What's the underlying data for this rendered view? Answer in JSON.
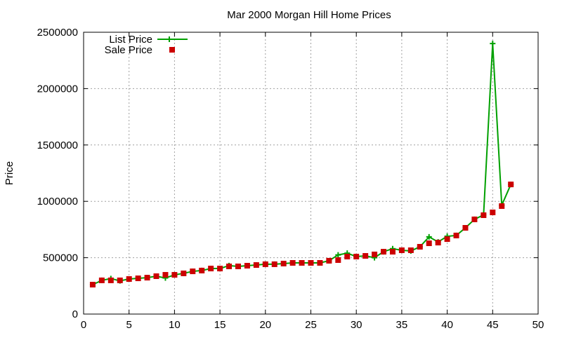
{
  "chart_data": {
    "type": "line",
    "title": "Mar 2000 Morgan Hill Home Prices",
    "xlabel": "",
    "ylabel": "Price",
    "xlim": [
      0,
      50
    ],
    "ylim": [
      0,
      2500000
    ],
    "xticks": [
      0,
      5,
      10,
      15,
      20,
      25,
      30,
      35,
      40,
      45,
      50
    ],
    "yticks": [
      0,
      500000,
      1000000,
      1500000,
      2000000,
      2500000
    ],
    "xtick_labels": [
      "0",
      "5",
      "10",
      "15",
      "20",
      "25",
      "30",
      "35",
      "40",
      "45",
      "50"
    ],
    "ytick_labels": [
      "0",
      "500000",
      "1000000",
      "1500000",
      "2000000",
      "2500000"
    ],
    "grid": true,
    "legend_position": "top-left",
    "x": [
      1,
      2,
      3,
      4,
      5,
      6,
      7,
      8,
      9,
      10,
      11,
      12,
      13,
      14,
      15,
      16,
      17,
      18,
      19,
      20,
      21,
      22,
      23,
      24,
      25,
      26,
      27,
      28,
      29,
      30,
      31,
      32,
      33,
      34,
      35,
      36,
      37,
      38,
      39,
      40,
      41,
      42,
      43,
      44,
      45,
      46,
      47
    ],
    "series": [
      {
        "name": "List Price",
        "color": "#00a000",
        "style": "linespoints-plus",
        "values": [
          261000,
          299000,
          315000,
          295000,
          311000,
          317000,
          323000,
          336000,
          320000,
          348000,
          361000,
          379000,
          386000,
          404000,
          404000,
          430000,
          423000,
          429000,
          435000,
          442000,
          442000,
          448000,
          454000,
          454000,
          454000,
          454000,
          473000,
          525000,
          540000,
          510000,
          516000,
          500000,
          553000,
          580000,
          566000,
          560000,
          597000,
          685000,
          640000,
          690000,
          697000,
          765000,
          840000,
          880000,
          2400000,
          965000,
          1150000
        ]
      },
      {
        "name": "Sale Price",
        "color": "#cc0000",
        "style": "points-square",
        "values": [
          261000,
          299000,
          299000,
          299000,
          311000,
          317000,
          323000,
          336000,
          348000,
          348000,
          361000,
          379000,
          386000,
          404000,
          404000,
          423000,
          423000,
          429000,
          435000,
          442000,
          442000,
          448000,
          454000,
          454000,
          454000,
          454000,
          473000,
          479000,
          510000,
          510000,
          516000,
          529000,
          553000,
          553000,
          566000,
          566000,
          597000,
          628000,
          634000,
          665000,
          697000,
          765000,
          840000,
          877000,
          902000,
          958000,
          1150000
        ]
      }
    ]
  }
}
